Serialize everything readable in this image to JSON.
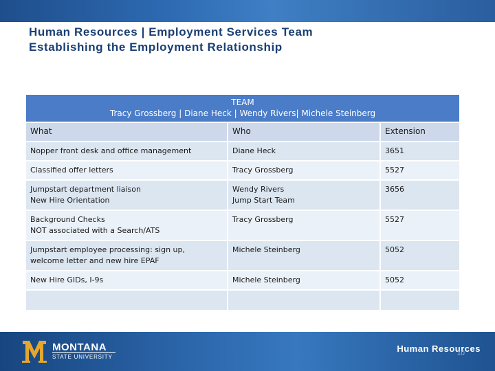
{
  "slide": {
    "title_line1": "Human Resources | Employment Services Team",
    "title_line2": "Establishing the Employment Relationship",
    "slide_number": "10"
  },
  "table": {
    "header_line1": "TEAM",
    "header_line2": "Tracy Grossberg | Diane Heck | Wendy Rivers| Michele Steinberg",
    "columns": [
      "What",
      "Who",
      "Extension"
    ],
    "rows": [
      {
        "what": [
          "Nopper front desk and office management"
        ],
        "who": [
          "Diane Heck"
        ],
        "ext": "3651"
      },
      {
        "what": [
          "Classified offer letters"
        ],
        "who": [
          "Tracy Grossberg"
        ],
        "ext": "5527"
      },
      {
        "what": [
          "Jumpstart department liaison",
          "New Hire Orientation"
        ],
        "who": [
          "Wendy Rivers",
          "Jump Start Team"
        ],
        "ext": "3656"
      },
      {
        "what": [
          "Background Checks",
          "NOT associated with a Search/ATS"
        ],
        "who": [
          "Tracy Grossberg"
        ],
        "ext": "5527"
      },
      {
        "what": [
          "Jumpstart employee processing: sign up,",
          "welcome letter and new hire EPAF"
        ],
        "who": [
          "Michele Steinberg"
        ],
        "ext": "5052"
      },
      {
        "what": [
          "New Hire GIDs, I-9s"
        ],
        "who": [
          "Michele Steinberg"
        ],
        "ext": "5052"
      },
      {
        "what": [
          ""
        ],
        "who": [
          ""
        ],
        "ext": ""
      }
    ]
  },
  "footer": {
    "logo_name": "MONTANA",
    "logo_sub": "STATE UNIVERSITY",
    "right_text": "Human Resources"
  },
  "colors": {
    "band_blue": "#2e6bb3",
    "title_navy": "#1a3f73",
    "table_header": "#4a7cc7",
    "row_dark": "#dce6f1",
    "row_light": "#ebf1f8",
    "logo_gold": "#e3a72f"
  }
}
